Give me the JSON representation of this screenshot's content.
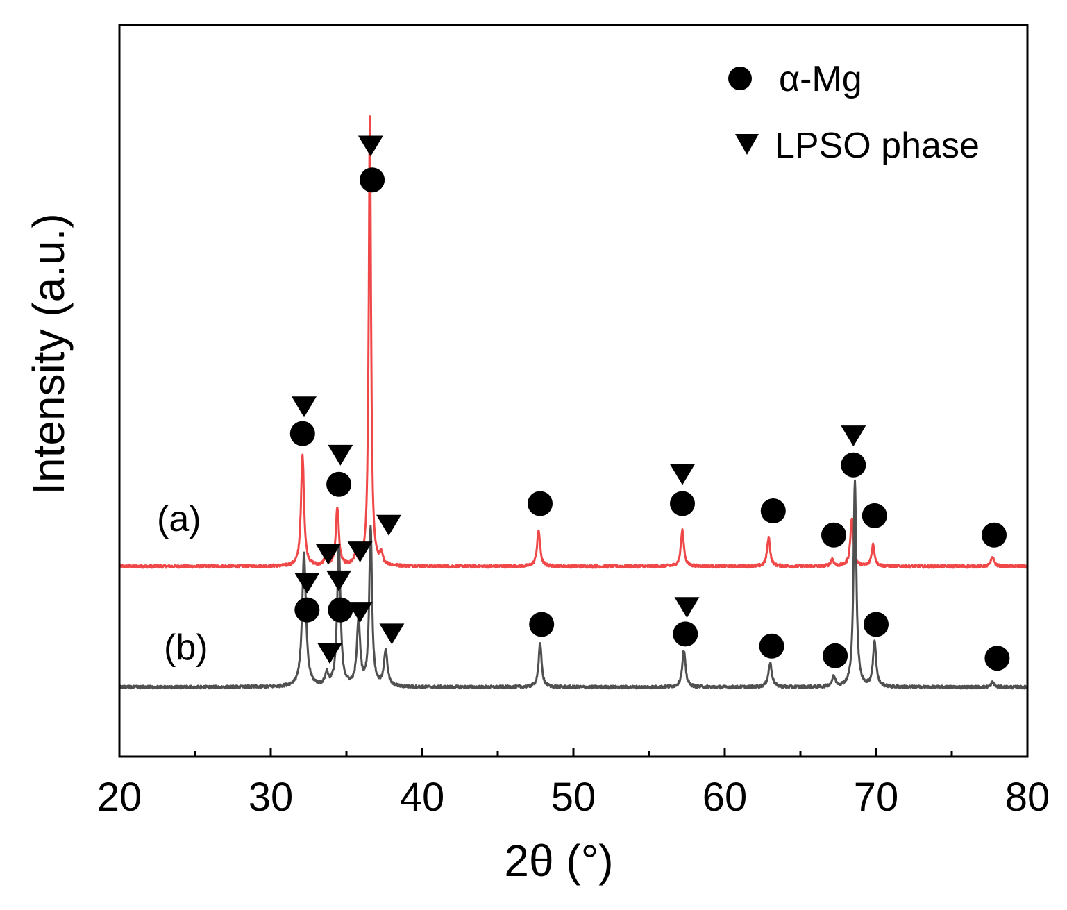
{
  "chart_data": {
    "type": "line",
    "title": "",
    "xlabel": "2θ (°)",
    "ylabel": "Intensity (a.u.)",
    "xlim": [
      20,
      80
    ],
    "ylim": [
      -0.3,
      2.8
    ],
    "grid": false,
    "x_ticks": [
      20,
      30,
      40,
      50,
      60,
      70,
      80
    ],
    "x_tick_labels": [
      "20",
      "30",
      "40",
      "50",
      "60",
      "70",
      "80"
    ],
    "legend": {
      "position": "top-right",
      "entries": [
        {
          "marker": "circle",
          "label": "α-Mg"
        },
        {
          "marker": "triangle-down",
          "label": "LPSO phase"
        }
      ]
    },
    "series": [
      {
        "name": "(a)",
        "label": "(a)",
        "color": "#f04848",
        "baseline": 0.5,
        "noise": 0.006,
        "peaks": [
          {
            "x": 32.1,
            "h": 0.46,
            "w": 0.12
          },
          {
            "x": 33.6,
            "h": 0.03,
            "w": 0.12
          },
          {
            "x": 34.4,
            "h": 0.24,
            "w": 0.12
          },
          {
            "x": 35.6,
            "h": 0.04,
            "w": 0.12
          },
          {
            "x": 36.55,
            "h": 1.86,
            "w": 0.09
          },
          {
            "x": 37.3,
            "h": 0.04,
            "w": 0.12
          },
          {
            "x": 47.7,
            "h": 0.15,
            "w": 0.12
          },
          {
            "x": 57.2,
            "h": 0.15,
            "w": 0.12
          },
          {
            "x": 62.9,
            "h": 0.12,
            "w": 0.12
          },
          {
            "x": 67.1,
            "h": 0.03,
            "w": 0.12
          },
          {
            "x": 68.4,
            "h": 0.2,
            "w": 0.12
          },
          {
            "x": 69.8,
            "h": 0.09,
            "w": 0.12
          },
          {
            "x": 77.7,
            "h": 0.04,
            "w": 0.12
          }
        ]
      },
      {
        "name": "(b)",
        "label": "(b)",
        "color": "#505050",
        "baseline": 0.0,
        "noise": 0.006,
        "peaks": [
          {
            "x": 32.2,
            "h": 0.55,
            "w": 0.15
          },
          {
            "x": 33.7,
            "h": 0.05,
            "w": 0.12
          },
          {
            "x": 34.5,
            "h": 0.58,
            "w": 0.13
          },
          {
            "x": 35.8,
            "h": 0.27,
            "w": 0.13
          },
          {
            "x": 36.6,
            "h": 0.66,
            "w": 0.11
          },
          {
            "x": 37.6,
            "h": 0.15,
            "w": 0.13
          },
          {
            "x": 47.8,
            "h": 0.18,
            "w": 0.12
          },
          {
            "x": 57.3,
            "h": 0.15,
            "w": 0.13
          },
          {
            "x": 63.0,
            "h": 0.1,
            "w": 0.14
          },
          {
            "x": 67.2,
            "h": 0.04,
            "w": 0.14
          },
          {
            "x": 68.6,
            "h": 0.86,
            "w": 0.11
          },
          {
            "x": 69.9,
            "h": 0.19,
            "w": 0.12
          },
          {
            "x": 77.7,
            "h": 0.02,
            "w": 0.12
          }
        ]
      }
    ],
    "annotations": [
      {
        "marker": "circle",
        "x": 32.1,
        "y": 1.05
      },
      {
        "marker": "triangle-down",
        "x": 32.2,
        "y": 1.16
      },
      {
        "marker": "circle",
        "x": 34.5,
        "y": 0.84
      },
      {
        "marker": "triangle-down",
        "x": 34.6,
        "y": 0.96
      },
      {
        "marker": "triangle-down",
        "x": 33.8,
        "y": 0.55
      },
      {
        "marker": "triangle-down",
        "x": 35.9,
        "y": 0.56
      },
      {
        "marker": "circle",
        "x": 36.7,
        "y": 2.1
      },
      {
        "marker": "triangle-down",
        "x": 36.6,
        "y": 2.24
      },
      {
        "marker": "triangle-down",
        "x": 37.8,
        "y": 0.67
      },
      {
        "marker": "circle",
        "x": 47.8,
        "y": 0.76
      },
      {
        "marker": "circle",
        "x": 57.2,
        "y": 0.76
      },
      {
        "marker": "triangle-down",
        "x": 57.2,
        "y": 0.88
      },
      {
        "marker": "circle",
        "x": 63.2,
        "y": 0.73
      },
      {
        "marker": "circle",
        "x": 67.2,
        "y": 0.63
      },
      {
        "marker": "circle",
        "x": 68.5,
        "y": 0.92
      },
      {
        "marker": "triangle-down",
        "x": 68.5,
        "y": 1.04
      },
      {
        "marker": "circle",
        "x": 69.9,
        "y": 0.71
      },
      {
        "marker": "circle",
        "x": 77.8,
        "y": 0.63
      },
      {
        "marker": "circle",
        "x": 32.4,
        "y": 0.32
      },
      {
        "marker": "triangle-down",
        "x": 32.4,
        "y": 0.43
      },
      {
        "marker": "circle",
        "x": 34.6,
        "y": 0.32
      },
      {
        "marker": "triangle-down",
        "x": 34.5,
        "y": 0.44
      },
      {
        "marker": "triangle-down",
        "x": 33.9,
        "y": 0.14
      },
      {
        "marker": "triangle-down",
        "x": 35.9,
        "y": 0.31
      },
      {
        "marker": "triangle-down",
        "x": 38.0,
        "y": 0.22
      },
      {
        "marker": "circle",
        "x": 47.9,
        "y": 0.26
      },
      {
        "marker": "circle",
        "x": 57.4,
        "y": 0.22
      },
      {
        "marker": "triangle-down",
        "x": 57.5,
        "y": 0.33
      },
      {
        "marker": "circle",
        "x": 63.1,
        "y": 0.17
      },
      {
        "marker": "circle",
        "x": 67.3,
        "y": 0.13
      },
      {
        "marker": "circle",
        "x": 70.0,
        "y": 0.26
      },
      {
        "marker": "circle",
        "x": 78.0,
        "y": 0.12
      }
    ]
  }
}
